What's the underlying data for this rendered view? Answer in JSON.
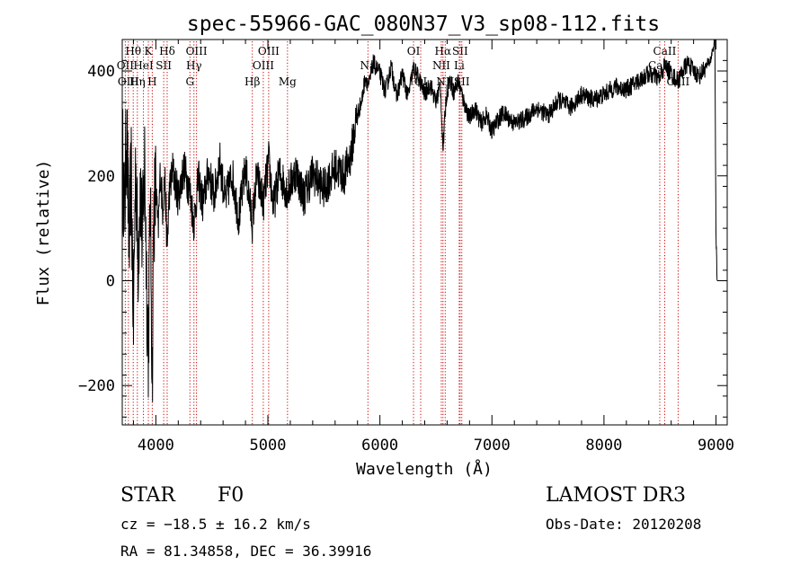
{
  "chart_data": {
    "type": "line",
    "title": "spec-55966-GAC_080N37_V3_sp08-112.fits",
    "xlabel": "Wavelength (Å)",
    "ylabel": "Flux (relative)",
    "xlim": [
      3700,
      9100
    ],
    "ylim": [
      -275,
      460
    ],
    "xticks": [
      4000,
      5000,
      6000,
      7000,
      8000,
      9000
    ],
    "yticks": [
      -200,
      0,
      200,
      400
    ],
    "series": [
      {
        "name": "flux",
        "x": [
          3700,
          3720,
          3740,
          3760,
          3780,
          3800,
          3820,
          3840,
          3860,
          3880,
          3900,
          3920,
          3933,
          3950,
          3968,
          3980,
          4000,
          4020,
          4040,
          4060,
          4080,
          4101,
          4120,
          4150,
          4200,
          4250,
          4300,
          4340,
          4380,
          4420,
          4470,
          4520,
          4570,
          4620,
          4680,
          4740,
          4800,
          4861,
          4900,
          4960,
          5007,
          5050,
          5100,
          5175,
          5250,
          5320,
          5400,
          5500,
          5600,
          5680,
          5740,
          5790,
          5840,
          5870,
          5900,
          5940,
          6000,
          6050,
          6100,
          6150,
          6200,
          6250,
          6300,
          6350,
          6400,
          6450,
          6500,
          6540,
          6563,
          6590,
          6620,
          6660,
          6700,
          6750,
          6800,
          6850,
          6900,
          6950,
          7000,
          7050,
          7100,
          7200,
          7300,
          7400,
          7500,
          7600,
          7700,
          7800,
          7900,
          8000,
          8100,
          8200,
          8300,
          8400,
          8500,
          8540,
          8600,
          8662,
          8700,
          8750,
          8800,
          8850,
          8900,
          8950,
          8990,
          9000,
          9010
        ],
        "y": [
          260,
          120,
          300,
          60,
          200,
          -80,
          240,
          30,
          190,
          70,
          230,
          -20,
          -130,
          160,
          -190,
          120,
          180,
          90,
          210,
          140,
          200,
          60,
          170,
          210,
          160,
          215,
          175,
          110,
          195,
          145,
          210,
          160,
          230,
          150,
          205,
          120,
          215,
          110,
          200,
          150,
          230,
          140,
          205,
          170,
          210,
          160,
          205,
          175,
          215,
          200,
          240,
          310,
          345,
          390,
          370,
          415,
          395,
          360,
          410,
          350,
          395,
          350,
          405,
          385,
          355,
          375,
          340,
          375,
          250,
          345,
          385,
          360,
          380,
          340,
          310,
          330,
          300,
          315,
          285,
          305,
          320,
          300,
          310,
          330,
          315,
          345,
          330,
          355,
          345,
          355,
          370,
          365,
          380,
          395,
          385,
          410,
          395,
          380,
          400,
          415,
          400,
          390,
          405,
          420,
          460,
          90,
          0
        ]
      }
    ],
    "lines": [
      {
        "label": "Hθ",
        "wl": 3798,
        "row": 0
      },
      {
        "label": "OII",
        "wl": 3727,
        "row": 1
      },
      {
        "label": "OIII",
        "wl": 3755,
        "row": 2
      },
      {
        "label": "Hη",
        "wl": 3835,
        "row": 2
      },
      {
        "label": "HeI",
        "wl": 3889,
        "row": 1
      },
      {
        "label": "K",
        "wl": 3933,
        "row": 0
      },
      {
        "label": "H",
        "wl": 3968,
        "row": 2
      },
      {
        "label": "SII",
        "wl": 4070,
        "row": 1
      },
      {
        "label": "Hδ",
        "wl": 4101,
        "row": 0
      },
      {
        "label": "Hγ",
        "wl": 4340,
        "row": 1
      },
      {
        "label": "G",
        "wl": 4304,
        "row": 2
      },
      {
        "label": "OIII",
        "wl": 4363,
        "row": 0
      },
      {
        "label": "Hβ",
        "wl": 4861,
        "row": 2
      },
      {
        "label": "OIII",
        "wl": 5007,
        "row": 0
      },
      {
        "label": "OIII",
        "wl": 4959,
        "row": 1
      },
      {
        "label": "Mg",
        "wl": 5175,
        "row": 2
      },
      {
        "label": "Na",
        "wl": 5893,
        "row": 1
      },
      {
        "label": "OI",
        "wl": 6300,
        "row": 0
      },
      {
        "label": "OI",
        "wl": 6364,
        "row": 2
      },
      {
        "label": "Hα",
        "wl": 6563,
        "row": 0
      },
      {
        "label": "NII",
        "wl": 6548,
        "row": 1
      },
      {
        "label": "NII",
        "wl": 6583,
        "row": 2
      },
      {
        "label": "SII",
        "wl": 6716,
        "row": 0
      },
      {
        "label": "Li",
        "wl": 6708,
        "row": 1
      },
      {
        "label": "SII",
        "wl": 6731,
        "row": 2
      },
      {
        "label": "CaII",
        "wl": 8542,
        "row": 0
      },
      {
        "label": "CaII",
        "wl": 8498,
        "row": 1
      },
      {
        "label": "CaII",
        "wl": 8662,
        "row": 2
      }
    ]
  },
  "info": {
    "object_type": "STAR",
    "subclass": "F0",
    "survey": "LAMOST DR3",
    "redshift": "cz = −18.5 ± 16.2 km/s",
    "obs_date": "Obs-Date: 20120208",
    "coords": "RA =  81.34858, DEC =  36.39916"
  },
  "colors": {
    "spectrum": "#000000",
    "line_marker": "#cc0000",
    "axes": "#000000"
  }
}
